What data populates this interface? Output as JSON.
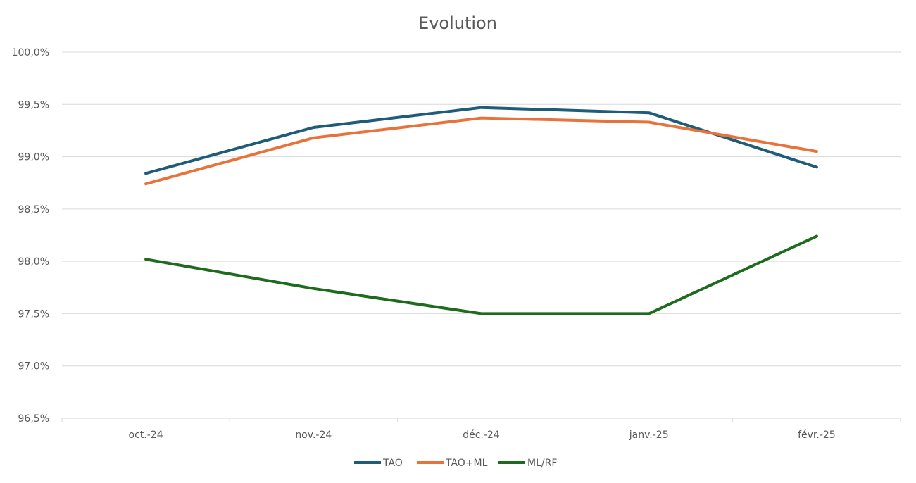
{
  "chart_data": {
    "type": "line",
    "title": "Evolution",
    "xlabel": "",
    "ylabel": "",
    "categories": [
      "oct.-24",
      "nov.-24",
      "déc.-24",
      "janv.-25",
      "févr.-25"
    ],
    "ylim": [
      96.5,
      100.0
    ],
    "yticks": [
      96.5,
      97.0,
      97.5,
      98.0,
      98.5,
      99.0,
      99.5,
      100.0
    ],
    "ytick_labels": [
      "96,5%",
      "97,0%",
      "97,5%",
      "98,0%",
      "98,5%",
      "99,0%",
      "99,5%",
      "100,0%"
    ],
    "grid": true,
    "legend_position": "bottom",
    "series": [
      {
        "name": "TAO",
        "color": "#1f5c7a",
        "values": [
          98.84,
          99.28,
          99.47,
          99.42,
          98.9
        ]
      },
      {
        "name": "TAO+ML",
        "color": "#e8733a",
        "values": [
          98.74,
          99.18,
          99.37,
          99.33,
          99.05
        ]
      },
      {
        "name": "ML/RF",
        "color": "#1e6b1e",
        "values": [
          98.02,
          97.74,
          97.5,
          97.5,
          98.24
        ]
      }
    ]
  }
}
